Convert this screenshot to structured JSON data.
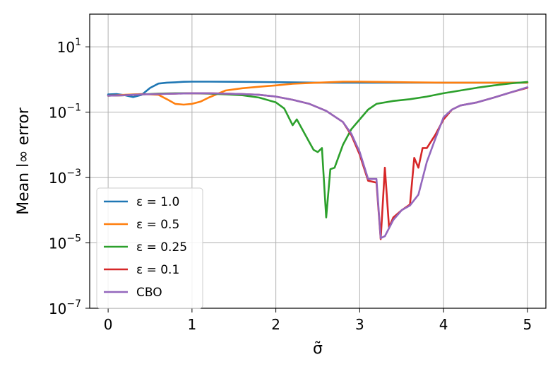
{
  "chart_data": {
    "type": "line",
    "title": "",
    "xlabel": "σ̃",
    "ylabel": "Mean l∞ error",
    "xlim": [
      -0.22,
      5.22
    ],
    "ylim": [
      1e-07,
      100
    ],
    "yscale": "log",
    "grid": true,
    "legend_position": "lower-left",
    "xticks": [
      0,
      1,
      2,
      3,
      4,
      5
    ],
    "xtick_labels": [
      "0",
      "1",
      "2",
      "3",
      "4",
      "5"
    ],
    "yticks": [
      1e-07,
      1e-05,
      0.001,
      0.1,
      10
    ],
    "ytick_labels": [
      {
        "base": "10",
        "exp": "−7"
      },
      {
        "base": "10",
        "exp": "−5"
      },
      {
        "base": "10",
        "exp": "−3"
      },
      {
        "base": "10",
        "exp": "−1"
      },
      {
        "base": "10",
        "exp": "1"
      }
    ],
    "series": [
      {
        "name": "ε = 1.0",
        "color": "#1f77b4",
        "points": [
          [
            0,
            0.35
          ],
          [
            0.1,
            0.36
          ],
          [
            0.2,
            0.33
          ],
          [
            0.3,
            0.29
          ],
          [
            0.4,
            0.34
          ],
          [
            0.5,
            0.55
          ],
          [
            0.6,
            0.75
          ],
          [
            0.7,
            0.8
          ],
          [
            0.8,
            0.82
          ],
          [
            0.9,
            0.85
          ],
          [
            1.0,
            0.86
          ],
          [
            1.2,
            0.86
          ],
          [
            1.5,
            0.85
          ],
          [
            2.0,
            0.83
          ],
          [
            2.5,
            0.8
          ],
          [
            3.0,
            0.8
          ],
          [
            3.5,
            0.8
          ],
          [
            4.0,
            0.8
          ],
          [
            4.5,
            0.8
          ],
          [
            5.0,
            0.8
          ]
        ]
      },
      {
        "name": "ε = 0.5",
        "color": "#ff7f0e",
        "points": [
          [
            0,
            0.32
          ],
          [
            0.2,
            0.34
          ],
          [
            0.4,
            0.36
          ],
          [
            0.6,
            0.34
          ],
          [
            0.7,
            0.25
          ],
          [
            0.8,
            0.18
          ],
          [
            0.9,
            0.17
          ],
          [
            1.0,
            0.18
          ],
          [
            1.1,
            0.21
          ],
          [
            1.2,
            0.28
          ],
          [
            1.3,
            0.36
          ],
          [
            1.4,
            0.46
          ],
          [
            1.6,
            0.54
          ],
          [
            1.8,
            0.6
          ],
          [
            2.0,
            0.66
          ],
          [
            2.2,
            0.74
          ],
          [
            2.5,
            0.8
          ],
          [
            2.8,
            0.86
          ],
          [
            3.0,
            0.86
          ],
          [
            3.3,
            0.84
          ],
          [
            3.6,
            0.82
          ],
          [
            4.0,
            0.8
          ],
          [
            4.5,
            0.8
          ],
          [
            5.0,
            0.8
          ]
        ]
      },
      {
        "name": "ε = 0.25",
        "color": "#2ca02c",
        "points": [
          [
            0,
            0.32
          ],
          [
            0.2,
            0.33
          ],
          [
            0.4,
            0.35
          ],
          [
            0.6,
            0.37
          ],
          [
            0.8,
            0.38
          ],
          [
            1.0,
            0.38
          ],
          [
            1.2,
            0.37
          ],
          [
            1.4,
            0.35
          ],
          [
            1.6,
            0.33
          ],
          [
            1.8,
            0.28
          ],
          [
            2.0,
            0.2
          ],
          [
            2.1,
            0.13
          ],
          [
            2.2,
            0.04
          ],
          [
            2.25,
            0.06
          ],
          [
            2.3,
            0.035
          ],
          [
            2.4,
            0.012
          ],
          [
            2.45,
            0.007
          ],
          [
            2.5,
            0.006
          ],
          [
            2.55,
            0.008
          ],
          [
            2.6,
            6e-05
          ],
          [
            2.65,
            0.0018
          ],
          [
            2.7,
            0.002
          ],
          [
            2.8,
            0.01
          ],
          [
            2.9,
            0.03
          ],
          [
            3.0,
            0.06
          ],
          [
            3.1,
            0.12
          ],
          [
            3.2,
            0.18
          ],
          [
            3.4,
            0.22
          ],
          [
            3.6,
            0.25
          ],
          [
            3.8,
            0.3
          ],
          [
            4.0,
            0.38
          ],
          [
            4.2,
            0.46
          ],
          [
            4.4,
            0.56
          ],
          [
            4.6,
            0.66
          ],
          [
            4.8,
            0.76
          ],
          [
            5.0,
            0.84
          ]
        ]
      },
      {
        "name": "ε = 0.1",
        "color": "#d62728",
        "points": [
          [
            0,
            0.32
          ],
          [
            0.2,
            0.33
          ],
          [
            0.4,
            0.35
          ],
          [
            0.6,
            0.36
          ],
          [
            0.8,
            0.37
          ],
          [
            1.0,
            0.38
          ],
          [
            1.2,
            0.38
          ],
          [
            1.4,
            0.37
          ],
          [
            1.6,
            0.36
          ],
          [
            1.8,
            0.34
          ],
          [
            2.0,
            0.3
          ],
          [
            2.2,
            0.24
          ],
          [
            2.4,
            0.18
          ],
          [
            2.6,
            0.11
          ],
          [
            2.8,
            0.05
          ],
          [
            2.9,
            0.02
          ],
          [
            3.0,
            0.005
          ],
          [
            3.1,
            0.0008
          ],
          [
            3.2,
            0.0007
          ],
          [
            3.25,
            1.3e-05
          ],
          [
            3.3,
            0.002
          ],
          [
            3.35,
            3e-05
          ],
          [
            3.4,
            6e-05
          ],
          [
            3.5,
            0.0001
          ],
          [
            3.6,
            0.00015
          ],
          [
            3.65,
            0.004
          ],
          [
            3.7,
            0.002
          ],
          [
            3.75,
            0.008
          ],
          [
            3.8,
            0.008
          ],
          [
            3.9,
            0.02
          ],
          [
            4.0,
            0.06
          ],
          [
            4.1,
            0.12
          ],
          [
            4.2,
            0.16
          ],
          [
            4.4,
            0.2
          ],
          [
            4.6,
            0.28
          ],
          [
            4.8,
            0.4
          ],
          [
            5.0,
            0.56
          ]
        ]
      },
      {
        "name": "CBO",
        "color": "#9467bd",
        "points": [
          [
            0,
            0.32
          ],
          [
            0.2,
            0.33
          ],
          [
            0.4,
            0.35
          ],
          [
            0.6,
            0.36
          ],
          [
            0.8,
            0.37
          ],
          [
            1.0,
            0.38
          ],
          [
            1.2,
            0.38
          ],
          [
            1.4,
            0.37
          ],
          [
            1.6,
            0.36
          ],
          [
            1.8,
            0.34
          ],
          [
            2.0,
            0.3
          ],
          [
            2.2,
            0.24
          ],
          [
            2.4,
            0.18
          ],
          [
            2.6,
            0.11
          ],
          [
            2.8,
            0.05
          ],
          [
            2.9,
            0.022
          ],
          [
            3.0,
            0.006
          ],
          [
            3.1,
            0.0009
          ],
          [
            3.2,
            0.0009
          ],
          [
            3.25,
            1.4e-05
          ],
          [
            3.3,
            1.6e-05
          ],
          [
            3.4,
            5e-05
          ],
          [
            3.5,
            0.0001
          ],
          [
            3.6,
            0.00014
          ],
          [
            3.7,
            0.0003
          ],
          [
            3.8,
            0.003
          ],
          [
            3.9,
            0.015
          ],
          [
            4.0,
            0.07
          ],
          [
            4.1,
            0.12
          ],
          [
            4.2,
            0.16
          ],
          [
            4.4,
            0.2
          ],
          [
            4.6,
            0.28
          ],
          [
            4.8,
            0.4
          ],
          [
            5.0,
            0.58
          ]
        ]
      }
    ]
  }
}
